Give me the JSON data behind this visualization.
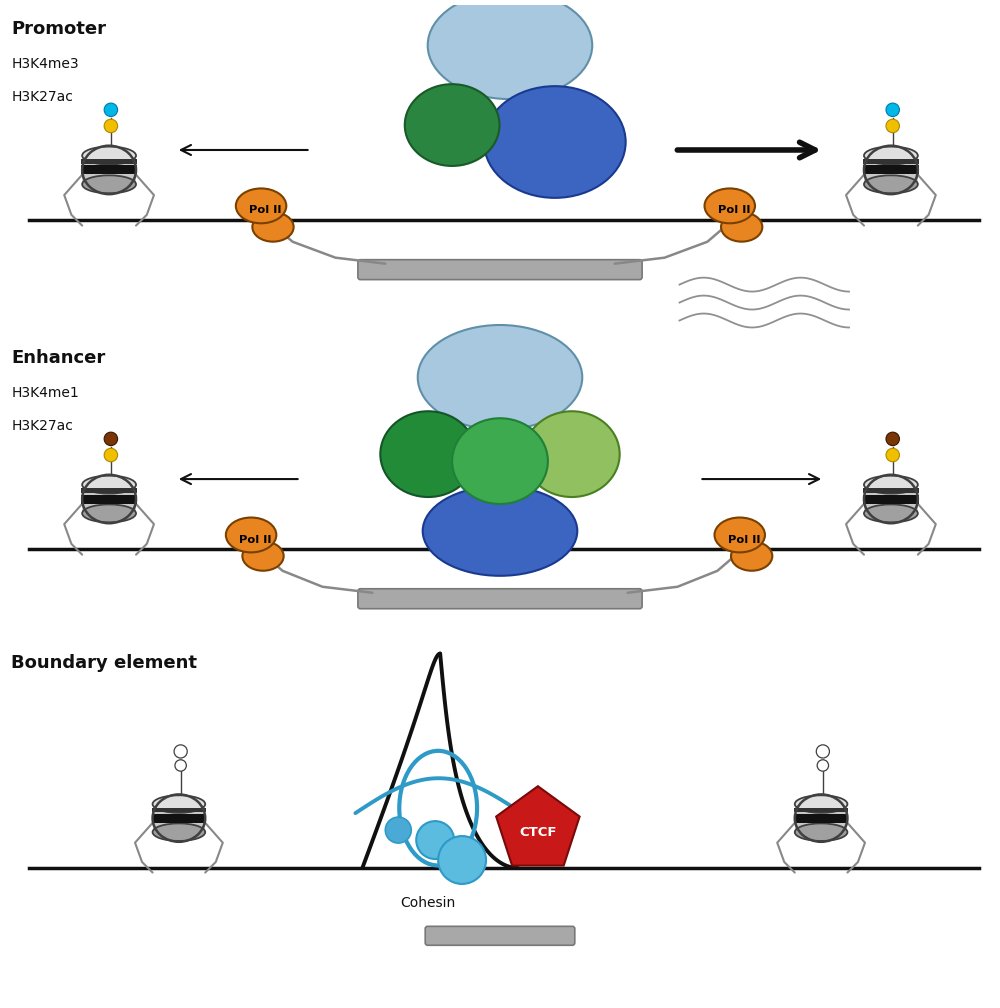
{
  "bg_color": "#ffffff",
  "promoter_label": "Promoter",
  "enhancer_label": "Enhancer",
  "boundary_label": "Boundary element",
  "h3k4me3": "H3K4me3",
  "h3k27ac": "H3K27ac",
  "h3k4me1": "H3K4me1",
  "orange": "#E88520",
  "dark_green": "#2A8540",
  "med_green": "#3DAA4A",
  "light_green": "#90C060",
  "blue_pic": "#3B65C0",
  "light_blue_med": "#A8C8E0",
  "gray_bar": "#A8A8A8",
  "red_ctcf": "#C81818",
  "teal_cohesin": "#2E9AC8",
  "cyan_mark": "#00B8E8",
  "yellow_mark": "#F0C000",
  "brown_mark": "#7A3505",
  "black": "#101010",
  "dark_gray": "#404040",
  "mid_gray": "#888888",
  "nuc_light": "#E0E0E0",
  "nuc_mid": "#C8C8C8",
  "nuc_dark": "#A0A0A0",
  "title_fs": 13,
  "label_fs": 10,
  "body_fs": 9,
  "dna_lw": 2.5
}
